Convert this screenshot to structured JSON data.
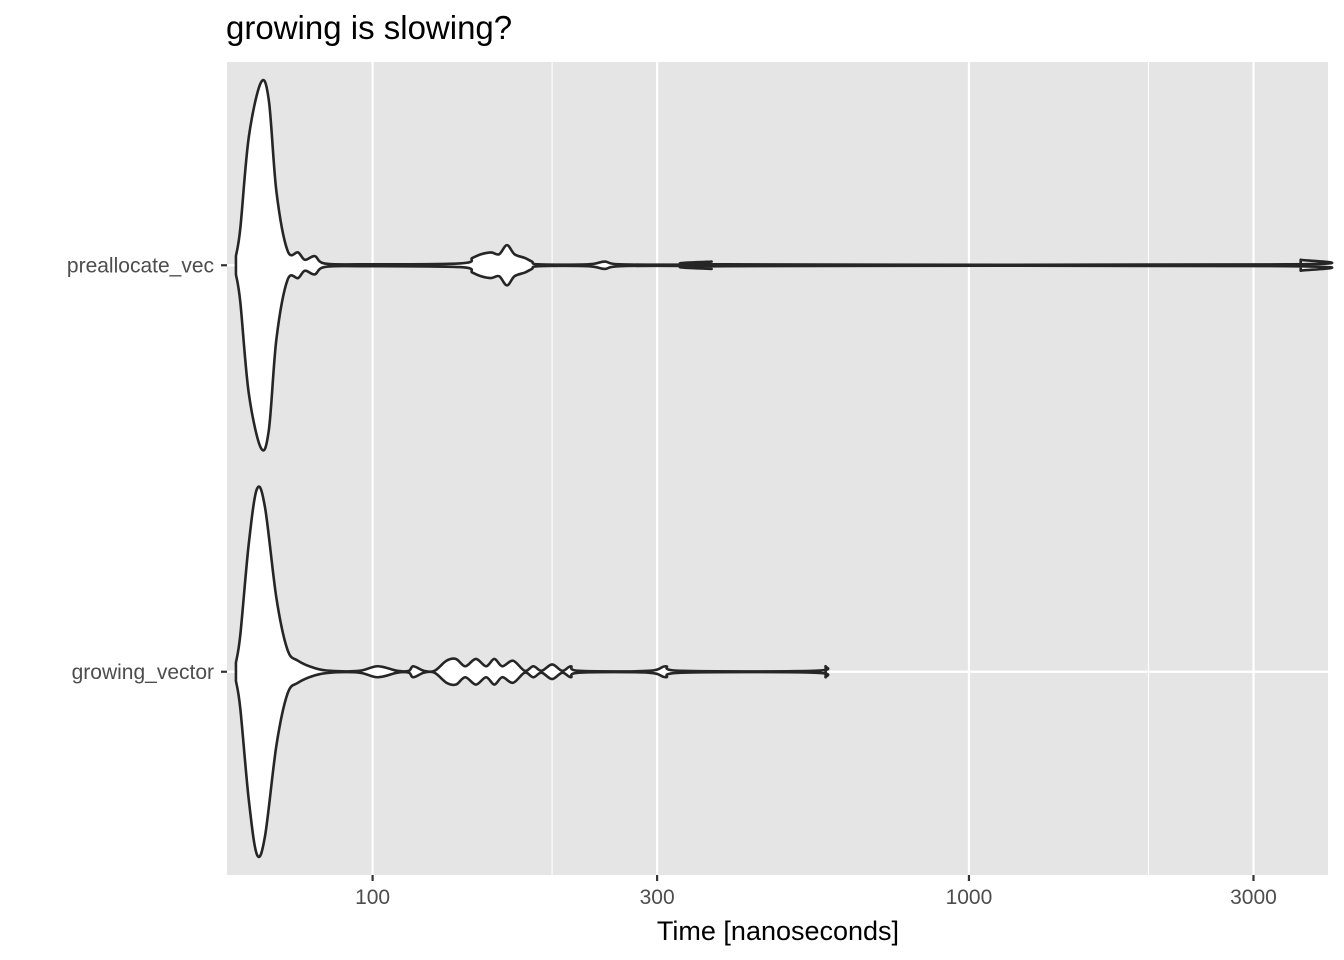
{
  "chart_data": {
    "type": "violin",
    "title": "growing is slowing?",
    "xlabel": "Time [nanoseconds]",
    "ylabel": "",
    "x_scale": "log10",
    "xlim": [
      57,
      4000
    ],
    "x_ticks": [
      100,
      300,
      1000,
      3000
    ],
    "x_tick_labels": [
      "100",
      "300",
      "1000",
      "3000"
    ],
    "x_minor_ticks": [
      30,
      200,
      2000
    ],
    "categories": [
      "preallocate_vec",
      "growing_vector"
    ],
    "grid": true,
    "colors": {
      "panel": "#e5e5e5",
      "grid": "#ffffff",
      "violin_fill": "#ffffff",
      "violin_stroke": "#262626"
    },
    "series": [
      {
        "category": "preallocate_vec",
        "min": 59,
        "max": 3600,
        "density": [
          [
            59,
            0.05
          ],
          [
            60,
            0.2
          ],
          [
            62,
            0.7
          ],
          [
            65,
            1.0
          ],
          [
            67,
            0.9
          ],
          [
            69,
            0.4
          ],
          [
            72,
            0.08
          ],
          [
            75,
            0.07
          ],
          [
            77,
            0.03
          ],
          [
            80,
            0.05
          ],
          [
            83,
            0.01
          ],
          [
            95,
            0.005
          ],
          [
            140,
            0.01
          ],
          [
            147,
            0.04
          ],
          [
            152,
            0.06
          ],
          [
            158,
            0.07
          ],
          [
            163,
            0.06
          ],
          [
            168,
            0.11
          ],
          [
            173,
            0.06
          ],
          [
            180,
            0.04
          ],
          [
            185,
            0.02
          ],
          [
            190,
            0.005
          ],
          [
            230,
            0.003
          ],
          [
            245,
            0.02
          ],
          [
            260,
            0.003
          ],
          [
            350,
            0.003
          ],
          [
            370,
            0.02
          ],
          [
            390,
            0.003
          ],
          [
            3400,
            0.003
          ],
          [
            3600,
            0.03
          ]
        ]
      },
      {
        "category": "growing_vector",
        "min": 59,
        "max": 575,
        "density": [
          [
            59,
            0.05
          ],
          [
            60,
            0.2
          ],
          [
            62,
            0.7
          ],
          [
            64,
            1.0
          ],
          [
            66,
            0.9
          ],
          [
            69,
            0.4
          ],
          [
            72,
            0.12
          ],
          [
            75,
            0.06
          ],
          [
            80,
            0.02
          ],
          [
            85,
            0.005
          ],
          [
            95,
            0.005
          ],
          [
            102,
            0.03
          ],
          [
            110,
            0.005
          ],
          [
            115,
            0.005
          ],
          [
            117,
            0.03
          ],
          [
            122,
            0.005
          ],
          [
            127,
            0.005
          ],
          [
            133,
            0.06
          ],
          [
            138,
            0.07
          ],
          [
            143,
            0.03
          ],
          [
            149,
            0.07
          ],
          [
            155,
            0.03
          ],
          [
            160,
            0.07
          ],
          [
            165,
            0.03
          ],
          [
            172,
            0.06
          ],
          [
            180,
            0.005
          ],
          [
            186,
            0.03
          ],
          [
            192,
            0.005
          ],
          [
            200,
            0.04
          ],
          [
            208,
            0.005
          ],
          [
            215,
            0.03
          ],
          [
            222,
            0.005
          ],
          [
            290,
            0.003
          ],
          [
            310,
            0.03
          ],
          [
            330,
            0.003
          ],
          [
            550,
            0.003
          ],
          [
            575,
            0.03
          ]
        ]
      }
    ]
  }
}
